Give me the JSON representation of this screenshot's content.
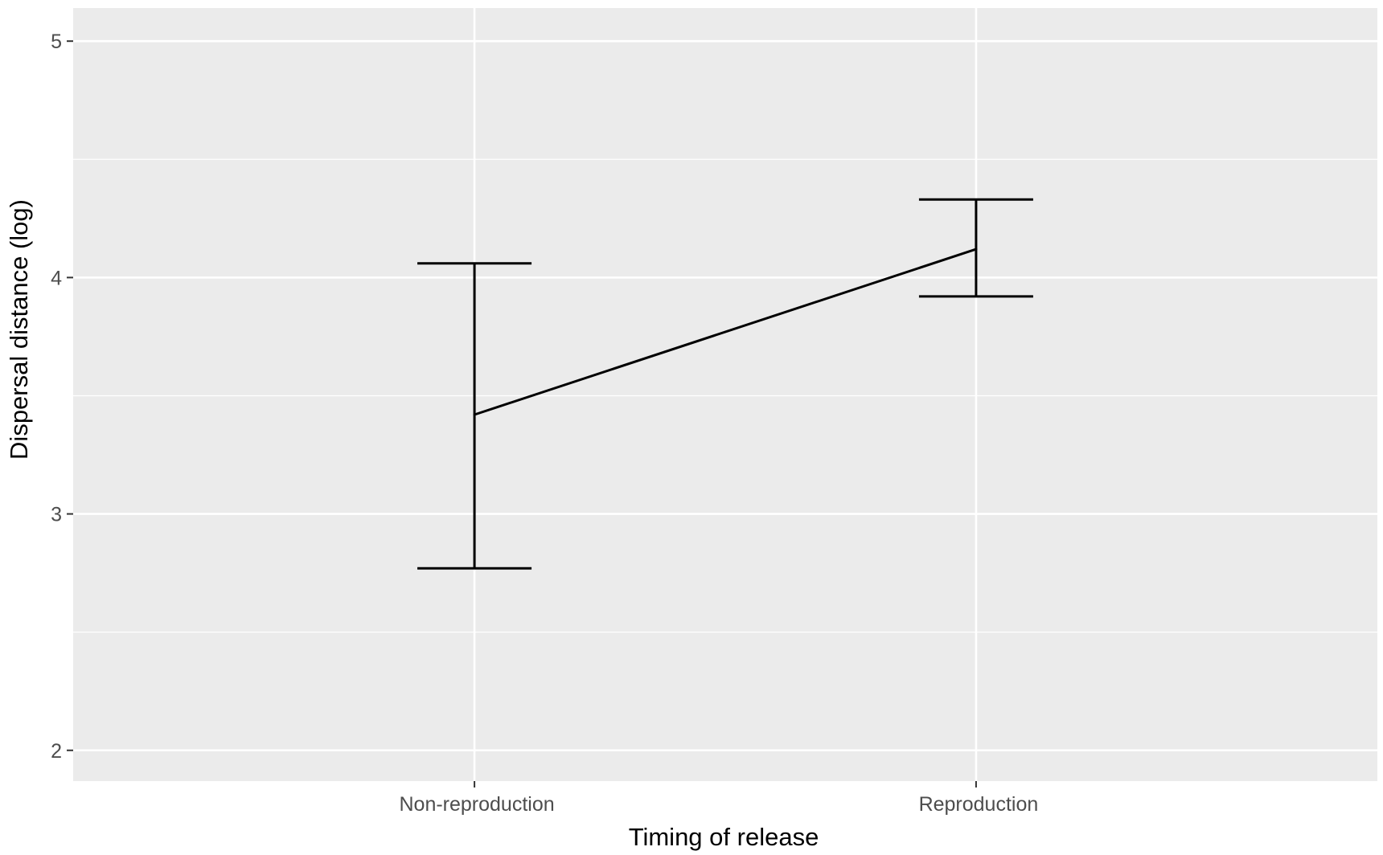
{
  "chart_data": {
    "type": "line",
    "title": "",
    "xlabel": "Timing of release",
    "ylabel": "Dispersal distance (log)",
    "categories": [
      "Non-reproduction",
      "Reproduction"
    ],
    "series": [
      {
        "values": [
          3.42,
          4.12
        ],
        "error_lower": [
          2.77,
          3.92
        ],
        "error_upper": [
          4.06,
          4.33
        ]
      }
    ],
    "ylim": [
      1.87,
      5.14
    ],
    "yticks": [
      2,
      3,
      4,
      5
    ],
    "yticklabels": [
      "2",
      "3",
      "4",
      "5"
    ],
    "grid": true,
    "legend": "none",
    "colors": {
      "panel": "#ebebeb",
      "grid": "#ffffff",
      "line": "#000000",
      "tick_text": "#4d4d4d",
      "tick_mark": "#333333"
    }
  }
}
